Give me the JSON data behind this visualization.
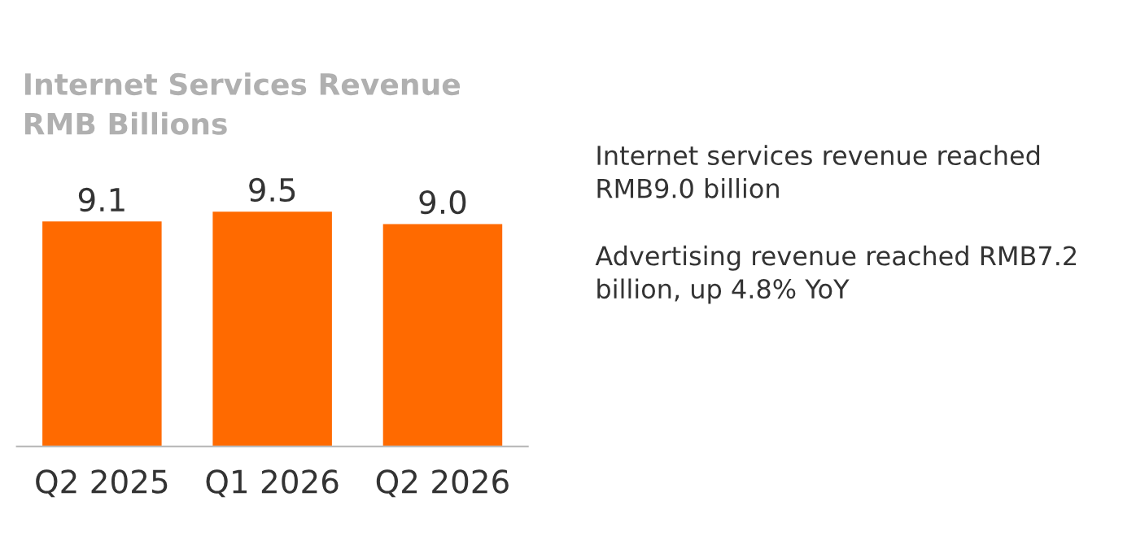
{
  "chart_data": {
    "type": "bar",
    "title": "Internet Services Revenue\nRMB Billions",
    "categories": [
      "Q2 2025",
      "Q1 2026",
      "Q2 2026"
    ],
    "values": [
      9.1,
      9.5,
      9.0
    ],
    "color": "#ff6a00",
    "tick_labels": "x",
    "value_labels": [
      "9.1",
      "9.5",
      "9.0"
    ],
    "grid": false,
    "legend": false,
    "annotations": [
      "Internet services revenue reached\nRMB9.0 billion",
      "Advertising revenue reached RMB7.2\nbillion, up 4.8% YoY"
    ]
  }
}
